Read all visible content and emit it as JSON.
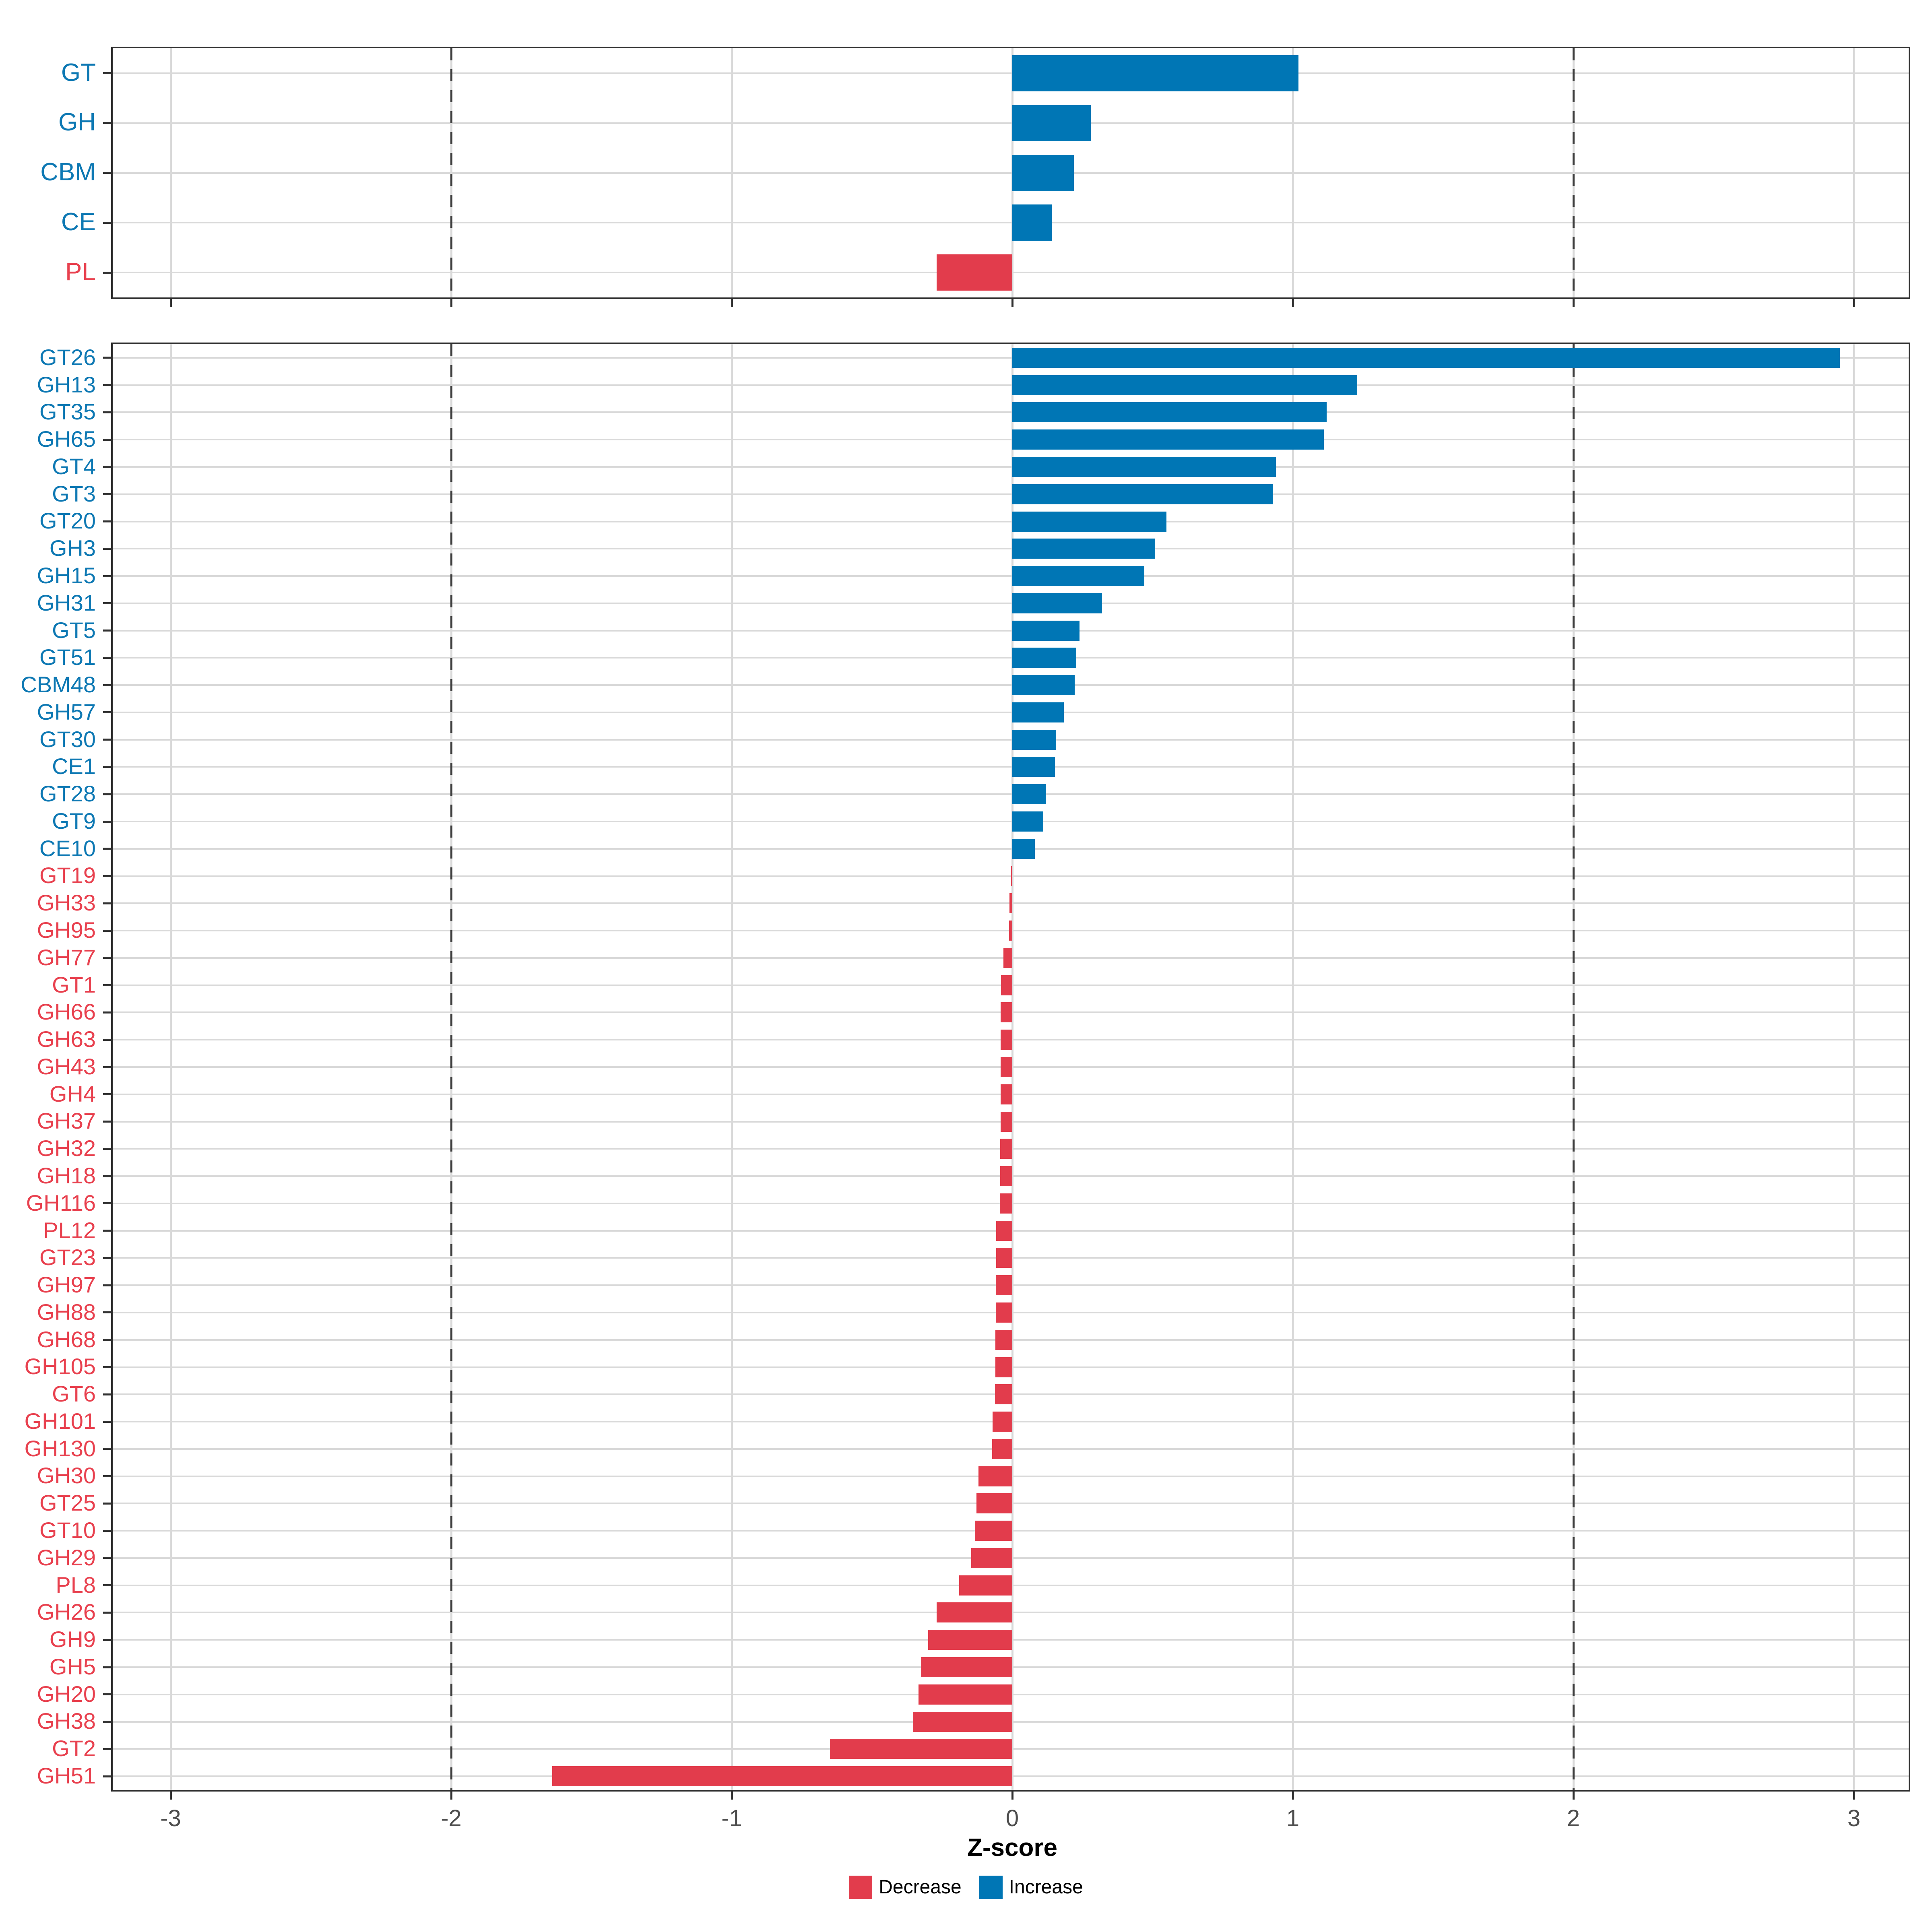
{
  "figure": {
    "xlabel": "Z-score",
    "x_tick_labels": [
      "-3",
      "-2",
      "-1",
      "0",
      "1",
      "2",
      "3"
    ],
    "x_tick_values": [
      -3,
      -2,
      -1,
      0,
      1,
      2,
      3
    ],
    "dashed_vlines": [
      -2,
      2
    ],
    "xlim": [
      -3.21,
      3.2
    ],
    "grid": "on",
    "legend_position": "bottom-center",
    "colors": {
      "increase_bar": "#0076b5",
      "decrease_bar": "#e23c4c",
      "increase_label": "#0d78b3",
      "decrease_label": "#e8404e",
      "gridline": "#d9d9d9",
      "dashed_line": "#3f3f3f",
      "tick_label": "#4d4d4d",
      "panel_border": "#2e2e2e"
    },
    "legend": {
      "items": [
        {
          "label": "Decrease",
          "color": "#e23c4c"
        },
        {
          "label": "Increase",
          "color": "#0076b5"
        }
      ]
    }
  },
  "chart_data": [
    {
      "type": "bar",
      "orientation": "horizontal",
      "panel": "top",
      "title": "",
      "xlabel": "Z-score",
      "xlim": [
        -3.21,
        3.2
      ],
      "categories": [
        "GT",
        "GH",
        "CBM",
        "CE",
        "PL"
      ],
      "values": [
        1.02,
        0.28,
        0.22,
        0.14,
        -0.27
      ],
      "groups": [
        "Increase",
        "Increase",
        "Increase",
        "Increase",
        "Decrease"
      ]
    },
    {
      "type": "bar",
      "orientation": "horizontal",
      "panel": "bottom",
      "title": "",
      "xlabel": "Z-score",
      "xlim": [
        -3.21,
        3.2
      ],
      "categories": [
        "GT26",
        "GH13",
        "GT35",
        "GH65",
        "GT4",
        "GT3",
        "GT20",
        "GH3",
        "GH15",
        "GH31",
        "GT5",
        "GT51",
        "CBM48",
        "GH57",
        "GT30",
        "CE1",
        "GT28",
        "GT9",
        "CE10",
        "GT19",
        "GH33",
        "GH95",
        "GH77",
        "GT1",
        "GH66",
        "GH63",
        "GH43",
        "GH4",
        "GH37",
        "GH32",
        "GH18",
        "GH116",
        "PL12",
        "GT23",
        "GH97",
        "GH88",
        "GH68",
        "GH105",
        "GT6",
        "GH101",
        "GH130",
        "GH30",
        "GT25",
        "GT10",
        "GH29",
        "PL8",
        "GH26",
        "GH9",
        "GH5",
        "GH20",
        "GH38",
        "GT2",
        "GH51"
      ],
      "values": [
        2.95,
        1.23,
        1.12,
        1.11,
        0.94,
        0.93,
        0.55,
        0.51,
        0.47,
        0.32,
        0.24,
        0.228,
        0.222,
        0.183,
        0.157,
        0.152,
        0.12,
        0.11,
        0.08,
        -0.005,
        -0.01,
        -0.012,
        -0.032,
        -0.04,
        -0.041,
        -0.041,
        -0.042,
        -0.042,
        -0.042,
        -0.043,
        -0.043,
        -0.044,
        -0.058,
        -0.058,
        -0.059,
        -0.059,
        -0.06,
        -0.06,
        -0.061,
        -0.07,
        -0.072,
        -0.12,
        -0.127,
        -0.133,
        -0.146,
        -0.19,
        -0.27,
        -0.3,
        -0.325,
        -0.335,
        -0.355,
        -0.65,
        -1.64
      ],
      "groups": [
        "Increase",
        "Increase",
        "Increase",
        "Increase",
        "Increase",
        "Increase",
        "Increase",
        "Increase",
        "Increase",
        "Increase",
        "Increase",
        "Increase",
        "Increase",
        "Increase",
        "Increase",
        "Increase",
        "Increase",
        "Increase",
        "Increase",
        "Decrease",
        "Decrease",
        "Decrease",
        "Decrease",
        "Decrease",
        "Decrease",
        "Decrease",
        "Decrease",
        "Decrease",
        "Decrease",
        "Decrease",
        "Decrease",
        "Decrease",
        "Decrease",
        "Decrease",
        "Decrease",
        "Decrease",
        "Decrease",
        "Decrease",
        "Decrease",
        "Decrease",
        "Decrease",
        "Decrease",
        "Decrease",
        "Decrease",
        "Decrease",
        "Decrease",
        "Decrease",
        "Decrease",
        "Decrease",
        "Decrease",
        "Decrease",
        "Decrease",
        "Decrease"
      ]
    }
  ]
}
